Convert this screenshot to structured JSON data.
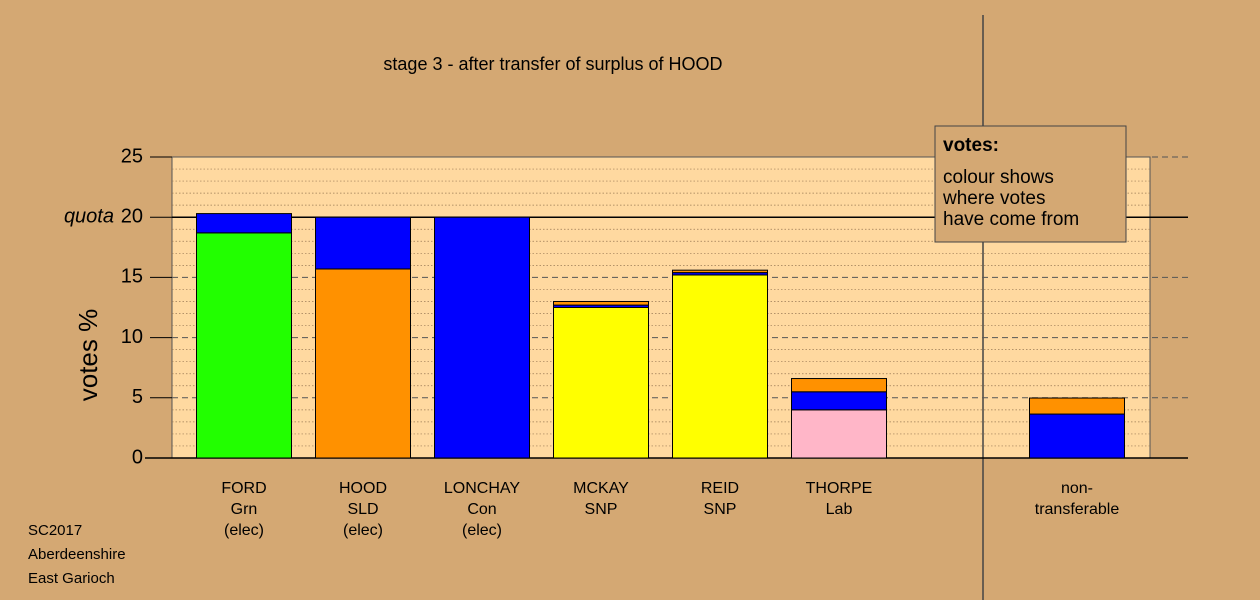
{
  "chart_data": {
    "type": "bar",
    "stacked": true,
    "title": "stage 3 - after transfer of surplus of HOOD",
    "ylabel": "votes %",
    "categories": [
      [
        "FORD",
        "Grn",
        "(elec)"
      ],
      [
        "HOOD",
        "SLD",
        "(elec)"
      ],
      [
        "LONCHAY",
        "Con",
        "(elec)"
      ],
      [
        "MCKAY",
        "SNP"
      ],
      [
        "REID",
        "SNP"
      ],
      [
        "THORPE",
        "Lab"
      ],
      null,
      [
        "non-",
        "transferable"
      ]
    ],
    "series": [
      {
        "colors": [
          "#22ff00",
          "#ff9100",
          "#0000ff",
          "#ffff00",
          "#ffff00",
          "#ffb6c8",
          null,
          null
        ],
        "values": [
          18.7,
          15.7,
          20.0,
          12.5,
          15.2,
          4.0,
          null,
          null
        ]
      },
      {
        "color": "#0000ff",
        "values": [
          1.6,
          4.3,
          null,
          0.2,
          0.2,
          1.5,
          null,
          3.65
        ]
      },
      {
        "color": "#ff9100",
        "values": [
          null,
          null,
          null,
          0.3,
          0.2,
          1.1,
          null,
          1.33
        ]
      }
    ],
    "ylim": [
      0,
      25
    ],
    "yticks": [
      0,
      5,
      10,
      15,
      20,
      25
    ],
    "quota": {
      "value": 20,
      "label": "quota"
    },
    "legend": {
      "title": "votes:",
      "lines": [
        "colour shows",
        "where votes",
        "have come from"
      ]
    },
    "footer": [
      "SC2017",
      "Aberdeenshire",
      "East Garioch"
    ]
  }
}
